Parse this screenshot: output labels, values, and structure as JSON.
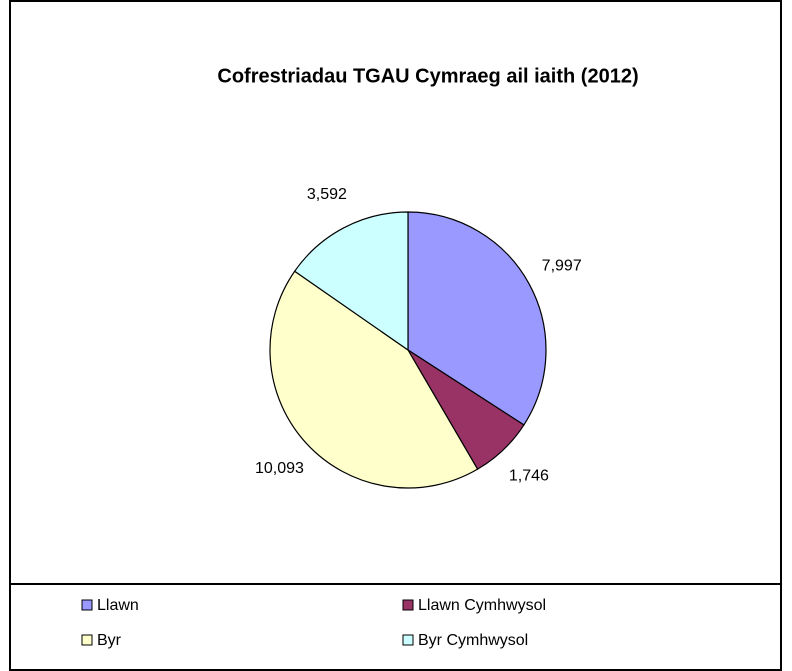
{
  "chart_data": {
    "type": "pie",
    "title": "Cofrestriadau TGAU Cymraeg ail iaith (2012)",
    "categories": [
      "Llawn",
      "Llawn Cymhwysol",
      "Byr",
      "Byr Cymhwysol"
    ],
    "values": [
      7997,
      1746,
      10093,
      3592
    ],
    "value_labels": [
      "7,997",
      "1,746",
      "10,093",
      "3,592"
    ],
    "colors": [
      "#9999ff",
      "#993366",
      "#ffffcc",
      "#ccffff"
    ],
    "legend": "bottom"
  }
}
